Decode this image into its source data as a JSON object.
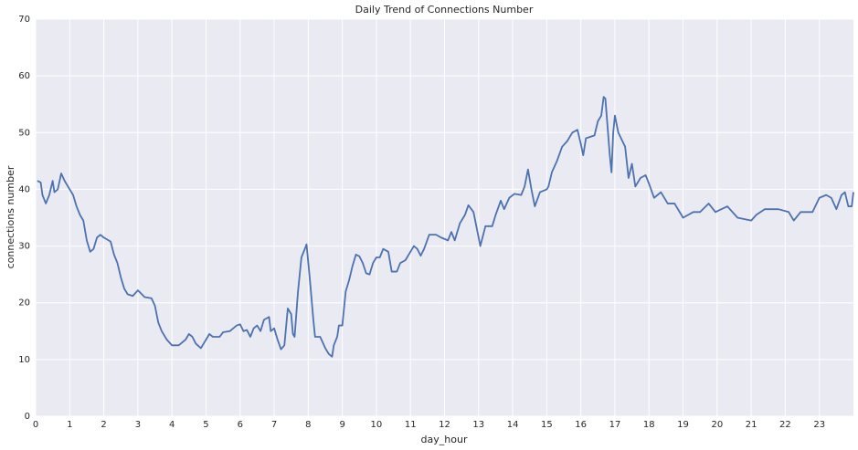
{
  "chart_data": {
    "type": "line",
    "title": "Daily Trend of Connections Number",
    "x_label": "day_hour",
    "y_label": "connections number",
    "x": [
      0.05,
      0.15,
      0.2,
      0.3,
      0.4,
      0.5,
      0.55,
      0.65,
      0.75,
      0.85,
      1.0,
      1.1,
      1.2,
      1.3,
      1.4,
      1.5,
      1.6,
      1.7,
      1.8,
      1.9,
      2.0,
      2.2,
      2.3,
      2.4,
      2.5,
      2.6,
      2.7,
      2.85,
      3.0,
      3.2,
      3.4,
      3.5,
      3.6,
      3.7,
      3.85,
      4.0,
      4.2,
      4.4,
      4.5,
      4.6,
      4.7,
      4.85,
      5.0,
      5.1,
      5.2,
      5.4,
      5.5,
      5.7,
      5.9,
      6.0,
      6.1,
      6.2,
      6.3,
      6.4,
      6.5,
      6.6,
      6.7,
      6.85,
      6.9,
      7.0,
      7.1,
      7.2,
      7.3,
      7.4,
      7.5,
      7.55,
      7.6,
      7.7,
      7.8,
      7.9,
      7.95,
      8.05,
      8.15,
      8.2,
      8.35,
      8.5,
      8.6,
      8.7,
      8.75,
      8.85,
      8.9,
      9.0,
      9.1,
      9.2,
      9.3,
      9.4,
      9.5,
      9.6,
      9.7,
      9.8,
      9.9,
      10.0,
      10.1,
      10.2,
      10.35,
      10.45,
      10.6,
      10.7,
      10.85,
      11.0,
      11.1,
      11.2,
      11.3,
      11.4,
      11.55,
      11.75,
      11.9,
      12.1,
      12.2,
      12.3,
      12.45,
      12.6,
      12.7,
      12.85,
      12.95,
      13.05,
      13.2,
      13.4,
      13.5,
      13.65,
      13.75,
      13.9,
      14.05,
      14.25,
      14.35,
      14.45,
      14.55,
      14.65,
      14.8,
      15.0,
      15.05,
      15.15,
      15.3,
      15.45,
      15.6,
      15.75,
      15.9,
      16.0,
      16.07,
      16.15,
      16.4,
      16.5,
      16.6,
      16.67,
      16.72,
      16.85,
      16.9,
      16.95,
      17.0,
      17.1,
      17.3,
      17.4,
      17.5,
      17.6,
      17.75,
      17.9,
      18.0,
      18.15,
      18.35,
      18.55,
      18.75,
      19.0,
      19.3,
      19.5,
      19.75,
      19.95,
      20.3,
      20.6,
      21.0,
      21.15,
      21.4,
      21.8,
      22.1,
      22.25,
      22.45,
      22.8,
      23.0,
      23.2,
      23.35,
      23.5,
      23.65,
      23.75,
      23.85,
      23.95,
      24.0
    ],
    "series": [
      {
        "name": "connections number",
        "color": "#4c72b0",
        "values": [
          41.5,
          41.2,
          39,
          37.5,
          39,
          41.5,
          39.5,
          40,
          42.8,
          41.5,
          40,
          39,
          37,
          35.5,
          34.5,
          31,
          29,
          29.5,
          31.5,
          32,
          31.5,
          30.8,
          28.5,
          27,
          24.5,
          22.5,
          21.5,
          21.2,
          22.2,
          21,
          20.8,
          19.5,
          16.5,
          15,
          13.5,
          12.5,
          12.5,
          13.5,
          14.5,
          14,
          12.8,
          12,
          13.5,
          14.5,
          14,
          14,
          14.8,
          15,
          16,
          16.2,
          15,
          15.2,
          14,
          15.5,
          16,
          15,
          17,
          17.5,
          15,
          15.5,
          13.5,
          11.8,
          12.5,
          19,
          18,
          14.5,
          14,
          22,
          28,
          29.5,
          30.3,
          24,
          17,
          14,
          14,
          12,
          11,
          10.5,
          12.5,
          14,
          16,
          16,
          22,
          24,
          26.5,
          28.5,
          28.2,
          27,
          25.2,
          25,
          27,
          28,
          28,
          29.5,
          29,
          25.5,
          25.5,
          27,
          27.5,
          29,
          30,
          29.5,
          28.3,
          29.5,
          32,
          32,
          31.5,
          31,
          32.5,
          31,
          34,
          35.5,
          37.2,
          36,
          33,
          30,
          33.5,
          33.5,
          35.5,
          38,
          36.5,
          38.5,
          39.2,
          39,
          40.5,
          43.5,
          40,
          37,
          39.5,
          40,
          40.5,
          43,
          45,
          47.5,
          48.5,
          50,
          50.5,
          48,
          46,
          49,
          49.5,
          52,
          53,
          56.3,
          56,
          46,
          43,
          50,
          53,
          50,
          47.5,
          42,
          44.5,
          40.5,
          42,
          42.5,
          41,
          38.5,
          39.5,
          37.5,
          37.5,
          35,
          36,
          36,
          37.5,
          36,
          37,
          35,
          34.5,
          35.5,
          36.5,
          36.5,
          36,
          34.5,
          36,
          36,
          38.5,
          39,
          38.5,
          36.5,
          39,
          39.5,
          37,
          37,
          39.5
        ]
      }
    ],
    "xlim": [
      0,
      24
    ],
    "ylim": [
      0,
      70
    ],
    "xticks": [
      0,
      1,
      2,
      3,
      4,
      5,
      6,
      7,
      8,
      9,
      10,
      11,
      12,
      13,
      14,
      15,
      16,
      17,
      18,
      19,
      20,
      21,
      22,
      23
    ],
    "yticks": [
      0,
      10,
      20,
      30,
      40,
      50,
      60,
      70
    ],
    "grid": true
  }
}
